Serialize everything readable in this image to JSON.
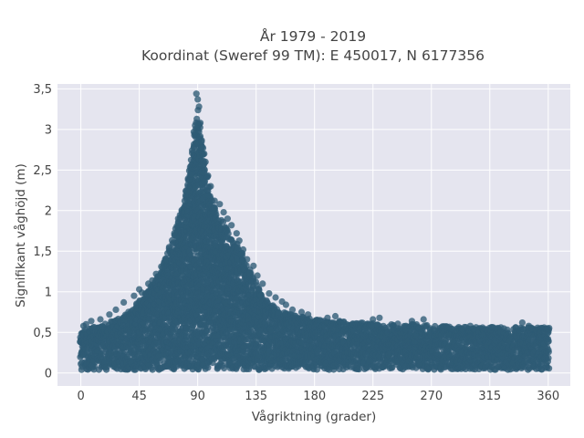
{
  "chart_data": {
    "type": "scatter",
    "title_line1": "År 1979 - 2019",
    "title_line2": "Koordinat (Sweref 99 TM): E 450017, N 6177356",
    "xlabel": "Vågriktning (grader)",
    "ylabel": "Signifikant våghöjd (m)",
    "xlim": [
      -18,
      377
    ],
    "ylim": [
      -0.16,
      3.56
    ],
    "x_ticks": [
      0,
      45,
      90,
      135,
      180,
      225,
      270,
      315,
      360
    ],
    "x_tick_labels": [
      "0",
      "45",
      "90",
      "135",
      "180",
      "225",
      "270",
      "315",
      "360"
    ],
    "y_ticks": [
      0,
      0.5,
      1,
      1.5,
      2,
      2.5,
      3,
      3.5
    ],
    "y_tick_labels": [
      "0",
      "0,5",
      "1",
      "1,5",
      "2",
      "2,5",
      "3",
      "3,5"
    ],
    "grid": true,
    "marker_color": "#2E5B74",
    "background_color": "#E5E5EF",
    "envelope": {
      "x": [
        0,
        10,
        20,
        30,
        40,
        50,
        60,
        70,
        80,
        85,
        90,
        95,
        100,
        110,
        120,
        130,
        140,
        150,
        160,
        180,
        200,
        225,
        250,
        270,
        300,
        330,
        360
      ],
      "ymax": [
        0.55,
        0.6,
        0.65,
        0.72,
        0.85,
        1.05,
        1.3,
        1.7,
        2.3,
        2.8,
        3.45,
        2.8,
        2.3,
        1.95,
        1.7,
        1.35,
        1.0,
        0.85,
        0.78,
        0.7,
        0.68,
        0.65,
        0.65,
        0.62,
        0.6,
        0.6,
        0.6
      ]
    },
    "points": [
      [
        89,
        3.44
      ],
      [
        90,
        3.37
      ],
      [
        91,
        3.28
      ],
      [
        88,
        3.05
      ],
      [
        92,
        3.08
      ],
      [
        87,
        2.97
      ],
      [
        93,
        2.85
      ],
      [
        95,
        2.7
      ],
      [
        96,
        2.6
      ],
      [
        85,
        2.45
      ],
      [
        82,
        2.23
      ],
      [
        80,
        2.12
      ],
      [
        98,
        2.43
      ],
      [
        100,
        2.3
      ],
      [
        103,
        2.12
      ],
      [
        107,
        2.08
      ],
      [
        110,
        1.98
      ],
      [
        113,
        1.9
      ],
      [
        116,
        1.82
      ],
      [
        120,
        1.72
      ],
      [
        122,
        1.63
      ],
      [
        125,
        1.52
      ],
      [
        128,
        1.4
      ],
      [
        133,
        1.32
      ],
      [
        136,
        1.2
      ],
      [
        140,
        1.1
      ],
      [
        145,
        0.98
      ],
      [
        150,
        0.93
      ],
      [
        155,
        0.88
      ],
      [
        158,
        0.84
      ],
      [
        163,
        0.78
      ],
      [
        170,
        0.75
      ],
      [
        175,
        0.72
      ],
      [
        190,
        0.68
      ],
      [
        196,
        0.7
      ],
      [
        225,
        0.66
      ],
      [
        230,
        0.68
      ],
      [
        255,
        0.64
      ],
      [
        264,
        0.66
      ],
      [
        300,
        0.58
      ],
      [
        340,
        0.62
      ],
      [
        345,
        0.58
      ],
      [
        58,
        1.22
      ],
      [
        62,
        1.31
      ],
      [
        65,
        1.4
      ],
      [
        68,
        1.55
      ],
      [
        72,
        1.72
      ],
      [
        75,
        1.9
      ],
      [
        41,
        0.95
      ],
      [
        45,
        1.03
      ],
      [
        47,
        0.99
      ],
      [
        52,
        1.1
      ],
      [
        55,
        1.14
      ],
      [
        33,
        0.87
      ],
      [
        27,
        0.78
      ],
      [
        22,
        0.72
      ],
      [
        15,
        0.66
      ],
      [
        8,
        0.64
      ],
      [
        4,
        0.6
      ],
      [
        2,
        0.58
      ]
    ]
  }
}
